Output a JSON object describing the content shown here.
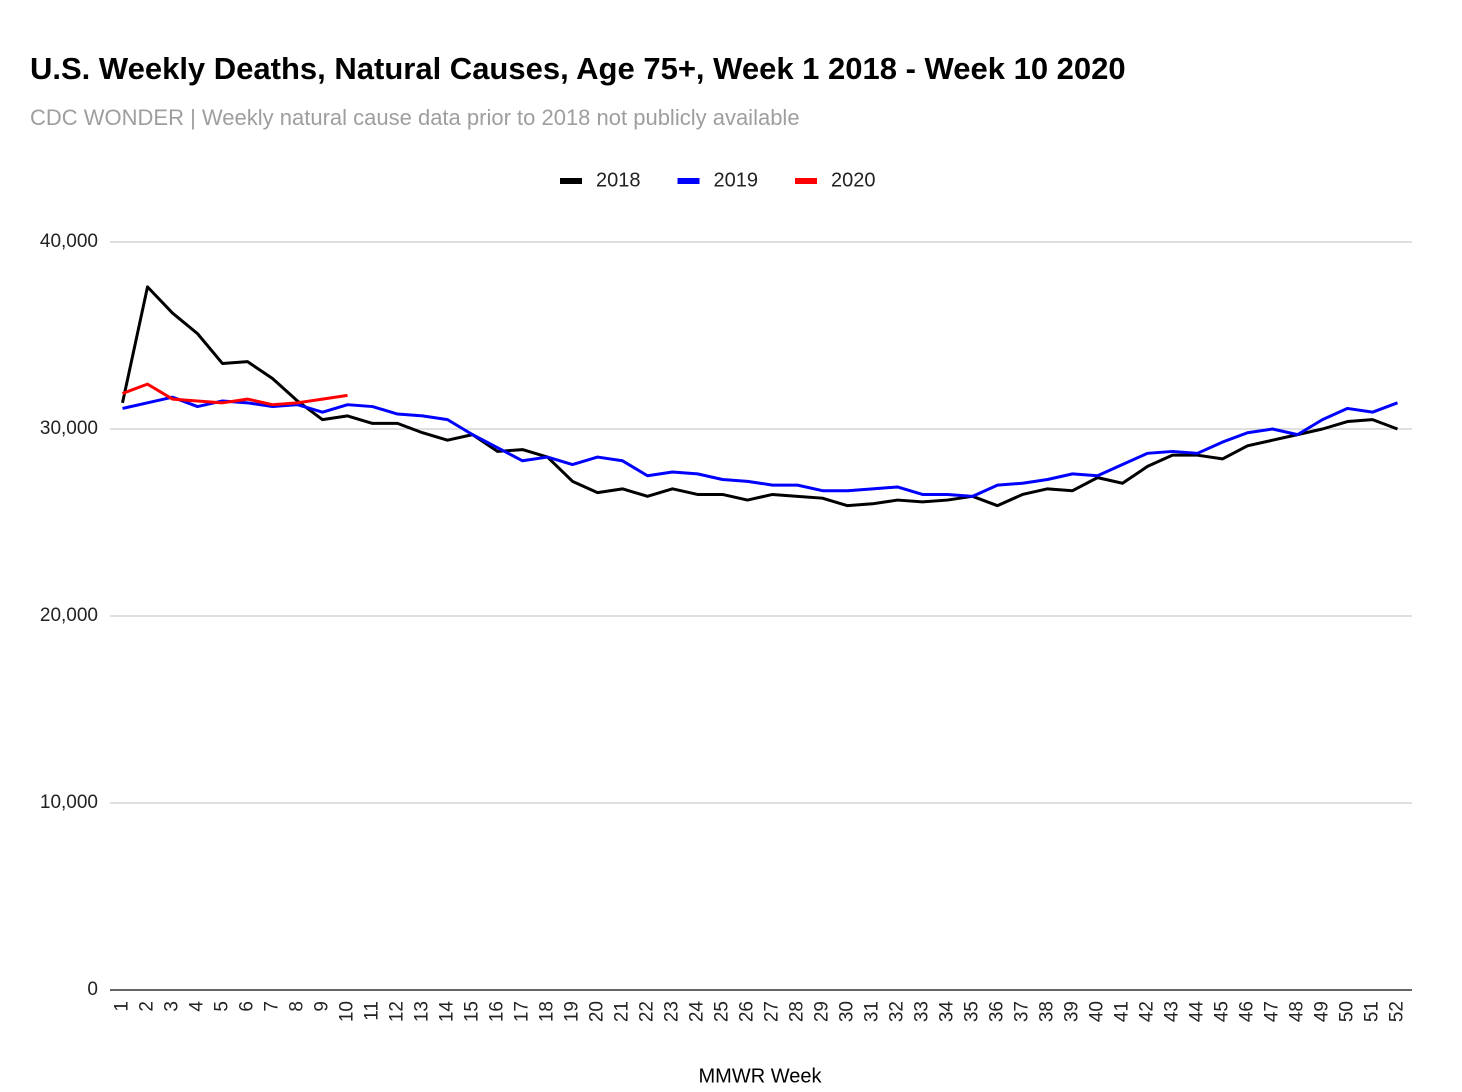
{
  "chart_data": {
    "type": "line",
    "title": "U.S. Weekly Deaths, Natural Causes, Age 75+, Week 1 2018 - Week 10 2020",
    "subtitle": "CDC WONDER | Weekly natural cause data prior to 2018 not publicly available",
    "x_label": "MMWR Week",
    "categories": [
      "1",
      "2",
      "3",
      "4",
      "5",
      "6",
      "7",
      "8",
      "9",
      "10",
      "11",
      "12",
      "13",
      "14",
      "15",
      "16",
      "17",
      "18",
      "19",
      "20",
      "21",
      "22",
      "23",
      "24",
      "25",
      "26",
      "27",
      "28",
      "29",
      "30",
      "31",
      "32",
      "33",
      "34",
      "35",
      "36",
      "37",
      "38",
      "39",
      "40",
      "41",
      "42",
      "43",
      "44",
      "45",
      "46",
      "47",
      "48",
      "49",
      "50",
      "51",
      "52"
    ],
    "series": [
      {
        "name": "2018",
        "color": "#000000",
        "values": [
          31400,
          37600,
          36200,
          35100,
          33500,
          33600,
          32700,
          31500,
          30500,
          30700,
          30300,
          30300,
          29800,
          29400,
          29700,
          28800,
          28900,
          28500,
          27200,
          26600,
          26800,
          26400,
          26800,
          26500,
          26500,
          26200,
          26500,
          26400,
          26300,
          25900,
          26000,
          26200,
          26100,
          26200,
          26400,
          25900,
          26500,
          26800,
          26700,
          27400,
          27100,
          28000,
          28600,
          28600,
          28400,
          29100,
          29400,
          29700,
          30000,
          30400,
          30500,
          30000
        ]
      },
      {
        "name": "2019",
        "color": "#0000ff",
        "values": [
          31100,
          31400,
          31700,
          31200,
          31500,
          31400,
          31200,
          31300,
          30900,
          31300,
          31200,
          30800,
          30700,
          30500,
          29700,
          29000,
          28300,
          28500,
          28100,
          28500,
          28300,
          27500,
          27700,
          27600,
          27300,
          27200,
          27000,
          27000,
          26700,
          26700,
          26800,
          26900,
          26500,
          26500,
          26400,
          27000,
          27100,
          27300,
          27600,
          27500,
          28100,
          28700,
          28800,
          28700,
          29300,
          29800,
          30000,
          29700,
          30500,
          31100,
          30900,
          31400
        ]
      },
      {
        "name": "2020",
        "color": "#ff0000",
        "values": [
          31900,
          32400,
          31600,
          31500,
          31400,
          31600,
          31300,
          31400,
          31600,
          31800,
          null,
          null,
          null,
          null,
          null,
          null,
          null,
          null,
          null,
          null,
          null,
          null,
          null,
          null,
          null,
          null,
          null,
          null,
          null,
          null,
          null,
          null,
          null,
          null,
          null,
          null,
          null,
          null,
          null,
          null,
          null,
          null,
          null,
          null,
          null,
          null,
          null,
          null,
          null,
          null,
          null,
          null
        ]
      }
    ],
    "ylim": [
      0,
      40000
    ],
    "yticks": [
      0,
      {
        "value": 10000,
        "label": "10,000"
      },
      {
        "value": 20000,
        "label": "20,000"
      },
      {
        "value": 30000,
        "label": "30,000"
      },
      {
        "value": 40000,
        "label": "40,000"
      }
    ],
    "grid": true,
    "legend": "top"
  }
}
